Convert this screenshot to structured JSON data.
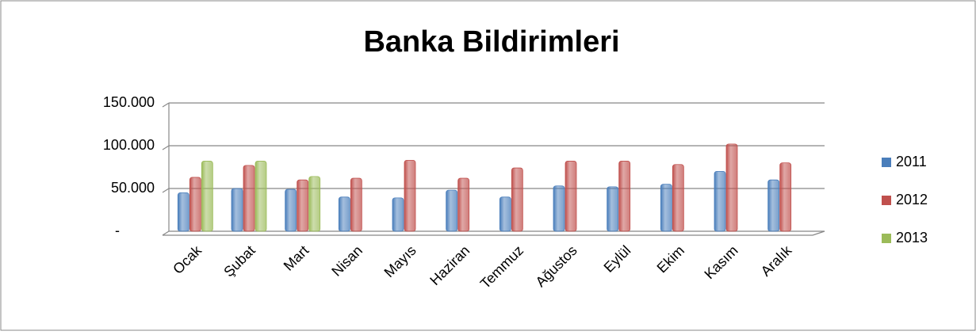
{
  "chart_data": {
    "type": "bar",
    "title": "Banka Bildirimleri",
    "categories": [
      "Ocak",
      "Şubat",
      "Mart",
      "Nisan",
      "Mayıs",
      "Haziran",
      "Temmuz",
      "Ağustos",
      "Eylül",
      "Ekim",
      "Kasım",
      "Aralık"
    ],
    "series": [
      {
        "name": "2011",
        "color": "#4a7ebb",
        "values": [
          45000,
          50000,
          49000,
          40000,
          39000,
          48000,
          40000,
          53000,
          52000,
          55000,
          70000,
          60000
        ]
      },
      {
        "name": "2012",
        "color": "#c0504d",
        "values": [
          63000,
          77000,
          60000,
          62000,
          83000,
          62000,
          74000,
          82000,
          82000,
          78000,
          102000,
          80000
        ]
      },
      {
        "name": "2013",
        "color": "#9bbb59",
        "values": [
          82000,
          82000,
          64000,
          null,
          null,
          null,
          null,
          null,
          null,
          null,
          null,
          null
        ]
      }
    ],
    "ylim": [
      0,
      150000
    ],
    "yticks": [
      {
        "value": 0,
        "label": "-"
      },
      {
        "value": 50000,
        "label": "50.000"
      },
      {
        "value": 100000,
        "label": "100.000"
      },
      {
        "value": 150000,
        "label": "150.000"
      }
    ],
    "grid": true,
    "legend": "right"
  }
}
